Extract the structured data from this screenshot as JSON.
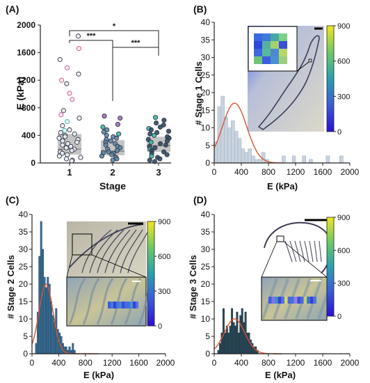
{
  "colors": {
    "stage1": "#c9d3df",
    "stage2": "#3a6f95",
    "stage3": "#2b4858",
    "fit": "#d9552f",
    "pink": "#e0458a",
    "teal": "#3ab9a6",
    "box": "#b5b5b5",
    "point": "#6a7f8f"
  },
  "chart_data": [
    {
      "panel": "(A)",
      "type": "scatter",
      "xlabel": "Stage",
      "ylabel": "E (kPa)",
      "categories": [
        "1",
        "2",
        "3"
      ],
      "ylim": [
        0,
        2000
      ],
      "yticks": [
        "0",
        "400",
        "800",
        "1200",
        "1600",
        "2000"
      ],
      "boxes": [
        {
          "stage": "1",
          "q1": 120,
          "median": 200,
          "q3": 420
        },
        {
          "stage": "2",
          "q1": 110,
          "median": 170,
          "q3": 330
        },
        {
          "stage": "3",
          "q1": 160,
          "median": 250,
          "q3": 380
        }
      ],
      "points": {
        "1": [
          1840,
          1660,
          1500,
          1380,
          1290,
          1200,
          1150,
          1010,
          920,
          760,
          700,
          650,
          600,
          540,
          480,
          470,
          440,
          420,
          400,
          380,
          360,
          340,
          320,
          300,
          280,
          260,
          240,
          220,
          200,
          180,
          160,
          140,
          120,
          100,
          80,
          60,
          40,
          30
        ],
        "2": [
          680,
          650,
          560,
          520,
          480,
          450,
          420,
          400,
          380,
          360,
          340,
          320,
          300,
          280,
          260,
          240,
          220,
          200,
          180,
          160,
          150,
          140,
          120,
          100,
          80,
          60,
          40
        ],
        "3": [
          660,
          620,
          580,
          550,
          520,
          500,
          480,
          460,
          440,
          420,
          400,
          380,
          360,
          340,
          320,
          300,
          280,
          260,
          240,
          220,
          200,
          180,
          160,
          140,
          120,
          100,
          80,
          60,
          40,
          20
        ]
      },
      "significance": [
        {
          "pair": [
            "1",
            "2"
          ],
          "label": "***"
        },
        {
          "pair": [
            "1",
            "3"
          ],
          "label": "*"
        },
        {
          "pair": [
            "2",
            "3"
          ],
          "label": "***"
        }
      ]
    },
    {
      "panel": "(B)",
      "type": "bar",
      "xlabel": "E (kPa)",
      "ylabel": "# Stage 1 Cells",
      "xlim": [
        0,
        2000
      ],
      "ylim": [
        0,
        40
      ],
      "xticks": [
        "0",
        "400",
        "800",
        "1200",
        "1600",
        "2000"
      ],
      "yticks": [
        "0",
        "5",
        "10",
        "15",
        "20",
        "25",
        "30",
        "35",
        "40"
      ],
      "bin_width": 50,
      "bin_starts": [
        0,
        50,
        100,
        150,
        200,
        250,
        300,
        350,
        400,
        450,
        500,
        550,
        600,
        650,
        700,
        750,
        1000,
        1150,
        1300,
        1400,
        1650,
        1850
      ],
      "counts": [
        6,
        16,
        19,
        13,
        10,
        12,
        9,
        7,
        4,
        3,
        4,
        2,
        1,
        1,
        3,
        1,
        2,
        2,
        2,
        1,
        2,
        2
      ],
      "fit": {
        "mean": 300,
        "sd": 180,
        "peak": 17
      },
      "colorbar_ticks": [
        "900",
        "600",
        "300",
        "0"
      ]
    },
    {
      "panel": "(C)",
      "type": "bar",
      "xlabel": "E (kPa)",
      "ylabel": "# Stage 2 Cells",
      "xlim": [
        0,
        2000
      ],
      "ylim": [
        0,
        40
      ],
      "xticks": [
        "0",
        "400",
        "800",
        "1200",
        "1600",
        "2000"
      ],
      "yticks": [
        "0",
        "5",
        "10",
        "15",
        "20",
        "25",
        "30",
        "35",
        "40"
      ],
      "bin_width": 25,
      "bin_starts": [
        50,
        75,
        100,
        125,
        150,
        175,
        200,
        225,
        250,
        275,
        300,
        325,
        350,
        375,
        400,
        425,
        450,
        475,
        500,
        525,
        550,
        575,
        600,
        625
      ],
      "counts": [
        3,
        12,
        28,
        38,
        30,
        22,
        19,
        22,
        20,
        15,
        11,
        9,
        13,
        7,
        6,
        5,
        3,
        2,
        2,
        1,
        2,
        1,
        3,
        1
      ],
      "fit": {
        "mean": 210,
        "sd": 105,
        "peak": 20
      },
      "colorbar_ticks": [
        "900",
        "600",
        "300",
        "0"
      ]
    },
    {
      "panel": "(D)",
      "type": "bar",
      "xlabel": "E (kPa)",
      "ylabel": "# Stage 3 Cells",
      "xlim": [
        0,
        2000
      ],
      "ylim": [
        0,
        40
      ],
      "xticks": [
        "0",
        "400",
        "800",
        "1200",
        "1600",
        "2000"
      ],
      "yticks": [
        "0",
        "5",
        "10",
        "15",
        "20",
        "25",
        "30",
        "35",
        "40"
      ],
      "bin_width": 25,
      "bin_starts": [
        50,
        75,
        100,
        125,
        150,
        175,
        200,
        225,
        250,
        275,
        300,
        325,
        350,
        375,
        400,
        425,
        450,
        475,
        500,
        525,
        550,
        575,
        600,
        625
      ],
      "counts": [
        1,
        3,
        6,
        13,
        6,
        8,
        6,
        8,
        13,
        9,
        8,
        12,
        6,
        11,
        13,
        9,
        12,
        6,
        6,
        4,
        3,
        2,
        2,
        1
      ],
      "fit": {
        "mean": 300,
        "sd": 150,
        "peak": 10
      },
      "colorbar_ticks": [
        "900",
        "600",
        "300",
        "0"
      ]
    }
  ]
}
